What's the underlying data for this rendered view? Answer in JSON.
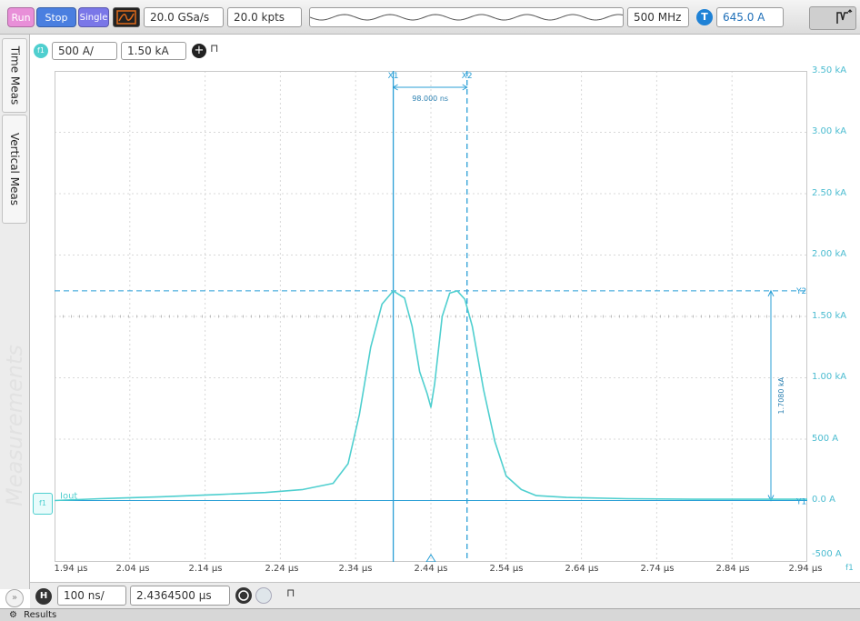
{
  "toolbar": {
    "run_label": "Run",
    "stop_label": "Stop",
    "single_label": "Single",
    "sample_rate": "20.0 GSa/s",
    "memory_depth": "20.0 kpts",
    "bandwidth": "500 MHz",
    "trigger_badge": "T",
    "trigger_level": "645.0 A",
    "colors": {
      "run": "#e88fd8",
      "stop": "#4a7fe0",
      "single": "#7a77e8",
      "trigger": "#1f82d6"
    }
  },
  "side_tabs": {
    "time_meas": "Time Meas",
    "vertical_meas": "Vertical Meas",
    "measurements_ghost": "Measurements"
  },
  "channel": {
    "badge": "f1",
    "scale": "500 A/",
    "offset": "1.50 kA",
    "color": "#4fcfcf"
  },
  "cursors": {
    "x1_label": "X1",
    "x2_label": "X2",
    "delta_x": "98.000 ns",
    "y1_label": "Y1",
    "y2_label": "Y2",
    "delta_y": "1.7080 kA",
    "color": "#2a9fd6"
  },
  "trace_label": "Iout",
  "y_axis": {
    "labels": [
      "3.50 kA",
      "3.00 kA",
      "2.50 kA",
      "2.00 kA",
      "1.50 kA",
      "1.00 kA",
      "500 A",
      "0.0 A",
      "-500 A"
    ]
  },
  "x_axis": {
    "labels": [
      "1.94 µs",
      "2.04 µs",
      "2.14 µs",
      "2.24 µs",
      "2.34 µs",
      "2.44 µs",
      "2.54 µs",
      "2.64 µs",
      "2.74 µs",
      "2.84 µs",
      "2.94 µs"
    ],
    "corner_badge": "f1"
  },
  "chart_data": {
    "type": "line",
    "x_unit": "µs",
    "y_unit": "A",
    "xlim": [
      1.94,
      2.94
    ],
    "ylim": [
      -500,
      3500
    ],
    "grid": true,
    "series": [
      {
        "name": "Iout",
        "color": "#4fcfcf",
        "x": [
          1.94,
          2.0,
          2.08,
          2.16,
          2.22,
          2.27,
          2.31,
          2.33,
          2.345,
          2.36,
          2.375,
          2.39,
          2.405,
          2.415,
          2.425,
          2.435,
          2.44,
          2.445,
          2.455,
          2.465,
          2.475,
          2.485,
          2.495,
          2.51,
          2.525,
          2.54,
          2.56,
          2.58,
          2.62,
          2.7,
          2.8,
          2.94
        ],
        "y": [
          0,
          15,
          30,
          50,
          65,
          90,
          140,
          300,
          700,
          1250,
          1600,
          1708,
          1650,
          1420,
          1050,
          870,
          760,
          950,
          1500,
          1690,
          1708,
          1640,
          1420,
          900,
          480,
          200,
          90,
          40,
          25,
          15,
          10,
          10
        ]
      }
    ]
  },
  "timebase": {
    "badge": "H",
    "scale": "100 ns/",
    "position": "2.4364500 µs"
  },
  "results_label": "Results"
}
